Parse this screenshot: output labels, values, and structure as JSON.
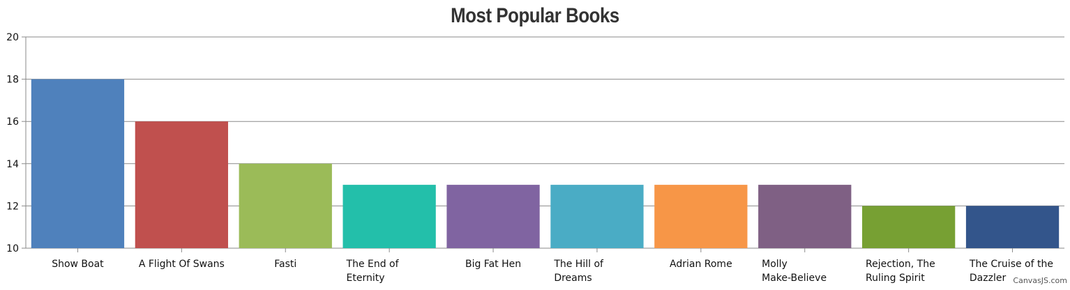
{
  "chart_data": {
    "type": "bar",
    "title": "Most Popular Books",
    "categories": [
      "Show Boat",
      "A Flight Of Swans",
      "Fasti",
      "The End of Eternity",
      "Big Fat Hen",
      "The Hill of Dreams",
      "Adrian Rome",
      "Molly Make-Believe",
      "Rejection, The Ruling Spirit",
      "The Cruise of the Dazzler"
    ],
    "category_lines": [
      [
        "Show Boat"
      ],
      [
        "A Flight Of Swans"
      ],
      [
        "Fasti"
      ],
      [
        "The End of",
        "Eternity"
      ],
      [
        "Big Fat Hen"
      ],
      [
        "The Hill of",
        "Dreams"
      ],
      [
        "Adrian Rome"
      ],
      [
        "Molly",
        "Make-Believe"
      ],
      [
        "Rejection, The",
        "Ruling Spirit"
      ],
      [
        "The Cruise of the",
        "Dazzler"
      ]
    ],
    "values": [
      18,
      16,
      14,
      13,
      13,
      13,
      13,
      13,
      12,
      12
    ],
    "colors": [
      "#4F81BC",
      "#C0504E",
      "#9BBB58",
      "#23BFAA",
      "#8064A1",
      "#4AACC5",
      "#F79647",
      "#7F6084",
      "#77A033",
      "#33558B"
    ],
    "xlabel": "",
    "ylabel": "",
    "ylim": [
      10,
      20
    ],
    "yticks": [
      10,
      12,
      14,
      16,
      18,
      20
    ],
    "grid": true
  },
  "credit": "CanvasJS.com"
}
